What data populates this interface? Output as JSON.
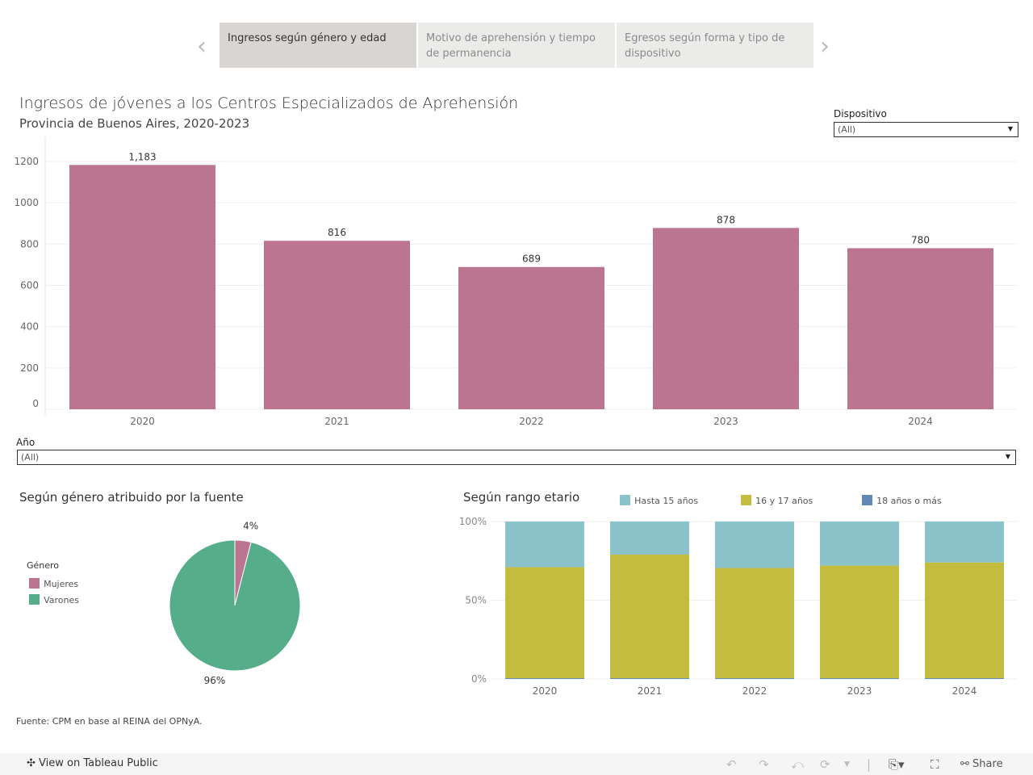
{
  "nav": {
    "tabs": [
      {
        "label": "Ingresos según género y edad",
        "active": true
      },
      {
        "label": "Motivo de aprehensión y tiempo de permanencia",
        "active": false
      },
      {
        "label": "Egresos según forma y tipo de dispositivo",
        "active": false
      }
    ],
    "prev_icon": "chevron-left-icon",
    "next_icon": "chevron-right-icon"
  },
  "header": {
    "title": "Ingresos de jóvenes a los Centros Especializados de Aprehensión",
    "subtitle": "Provincia de Buenos Aires, 2020-2023"
  },
  "filters": {
    "dispositivo": {
      "label": "Dispositivo",
      "value": "(All)"
    },
    "anio": {
      "label": "Año",
      "value": "(All)"
    }
  },
  "sections": {
    "gender": "Según género atribuido por la fuente",
    "age": "Según rango etario"
  },
  "source": "Fuente: CPM en base al REINA del OPNyA.",
  "toolbar": {
    "view_label": "View on Tableau Public",
    "share_label": "Share"
  },
  "chart_data": [
    {
      "type": "bar",
      "categories": [
        "2020",
        "2021",
        "2022",
        "2023",
        "2024"
      ],
      "values": [
        1183,
        816,
        689,
        878,
        780
      ],
      "data_labels": [
        "1,183",
        "816",
        "689",
        "878",
        "780"
      ],
      "ylim": [
        0,
        1200
      ],
      "yticks": [
        "0",
        "200",
        "400",
        "600",
        "800",
        "1000",
        "1200"
      ],
      "grid": true,
      "color": "#bb7590"
    },
    {
      "type": "pie",
      "legend_title": "Género",
      "legend_placement": "left",
      "slices": [
        {
          "name": "Mujeres",
          "value": 4,
          "label": "4%",
          "color": "#bb7590"
        },
        {
          "name": "Varones",
          "value": 96,
          "label": "96%",
          "color": "#55ad89"
        }
      ]
    },
    {
      "type": "bar",
      "stacked": true,
      "normalized": true,
      "categories": [
        "2020",
        "2021",
        "2022",
        "2023",
        "2024"
      ],
      "yticks": [
        "0%",
        "50%",
        "100%"
      ],
      "legend_placement": "top",
      "series": [
        {
          "name": "18 años o más",
          "color": "#6388b4",
          "values": [
            0.5,
            0.5,
            0.5,
            0.5,
            0.5
          ]
        },
        {
          "name": "16 y 17 años",
          "color": "#c3bc3f",
          "values": [
            70.5,
            78.5,
            70,
            71.5,
            73.5
          ]
        },
        {
          "name": "Hasta 15 años",
          "color": "#8cc2ca",
          "values": [
            29,
            21,
            29.5,
            28,
            26
          ]
        }
      ]
    }
  ]
}
